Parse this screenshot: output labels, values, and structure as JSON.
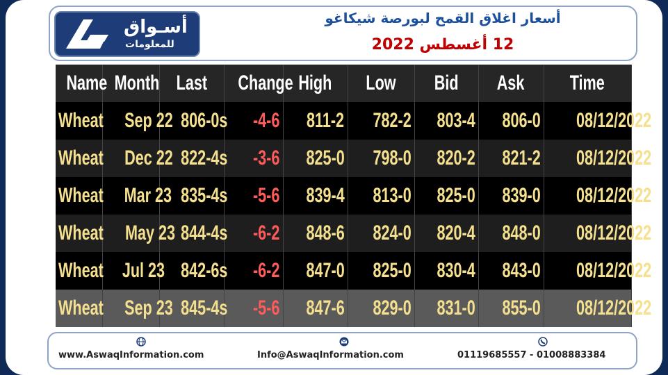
{
  "header": {
    "logo_main": "أسـواق",
    "logo_sub": "للمعلومات",
    "title": "أسعار اغلاق القمح لبورصة شيكاغو",
    "date": "12 أغسطس 2022"
  },
  "table": {
    "columns": [
      "Name",
      "Month",
      "Last",
      "Change",
      "High",
      "Low",
      "Bid",
      "Ask",
      "Time"
    ],
    "rows": [
      [
        "Wheat",
        "Sep 22",
        "806-0s",
        "-4-6",
        "811-2",
        "782-2",
        "803-4",
        "806-0",
        "08/12/2022"
      ],
      [
        "Wheat",
        "Dec 22",
        "822-4s",
        "-3-6",
        "825-0",
        "798-0",
        "820-2",
        "821-2",
        "08/12/2022"
      ],
      [
        "Wheat",
        "Mar 23",
        "835-4s",
        "-5-6",
        "839-4",
        "813-0",
        "825-0",
        "839-0",
        "08/12/2022"
      ],
      [
        "Wheat",
        "May 23",
        "844-4s",
        "-6-2",
        "848-6",
        "824-0",
        "820-4",
        "848-0",
        "08/12/2022"
      ],
      [
        "Wheat",
        "Jul 23",
        "842-6s",
        "-6-2",
        "847-0",
        "825-0",
        "830-4",
        "843-0",
        "08/12/2022"
      ],
      [
        "Wheat",
        "Sep 23",
        "845-4s",
        "-5-6",
        "847-6",
        "829-0",
        "831-0",
        "855-0",
        "08/12/2022"
      ]
    ]
  },
  "footer": {
    "website": "www.AswaqInformation.com",
    "email": "Info@AswaqInformation.com",
    "phones": "01119685557 - 01008883384"
  }
}
